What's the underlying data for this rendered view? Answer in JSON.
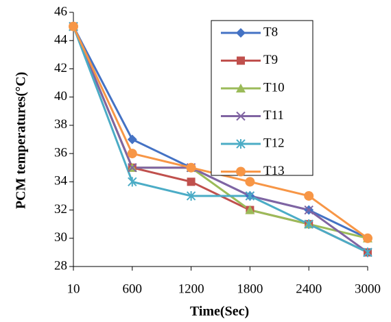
{
  "chart_data": {
    "type": "line",
    "x_label": "Time(Sec)",
    "y_label": "PCM temperatures(°C)",
    "categories": [
      "10",
      "600",
      "1200",
      "1800",
      "2400",
      "3000"
    ],
    "ylim": [
      28,
      46
    ],
    "yticks": [
      28,
      30,
      32,
      34,
      36,
      38,
      40,
      42,
      44,
      46
    ],
    "grid": false,
    "legend": "upper right",
    "series": [
      {
        "name": "T8",
        "color": "#4472c4",
        "marker": "diamond",
        "values": [
          45,
          37,
          35,
          33,
          32,
          30
        ]
      },
      {
        "name": "T9",
        "color": "#c0504d",
        "marker": "square",
        "values": [
          45,
          35,
          34,
          32,
          31,
          29
        ]
      },
      {
        "name": "T10",
        "color": "#9bbb59",
        "marker": "triangle",
        "values": [
          45,
          35,
          35,
          32,
          31,
          30
        ]
      },
      {
        "name": "T11",
        "color": "#8064a2",
        "marker": "x",
        "values": [
          45,
          35,
          35,
          33,
          32,
          29
        ]
      },
      {
        "name": "T12",
        "color": "#4bacc6",
        "marker": "star",
        "values": [
          45,
          34,
          33,
          33,
          31,
          29
        ]
      },
      {
        "name": "T13",
        "color": "#f79646",
        "marker": "circle",
        "values": [
          45,
          36,
          35,
          34,
          33,
          30
        ]
      }
    ]
  }
}
